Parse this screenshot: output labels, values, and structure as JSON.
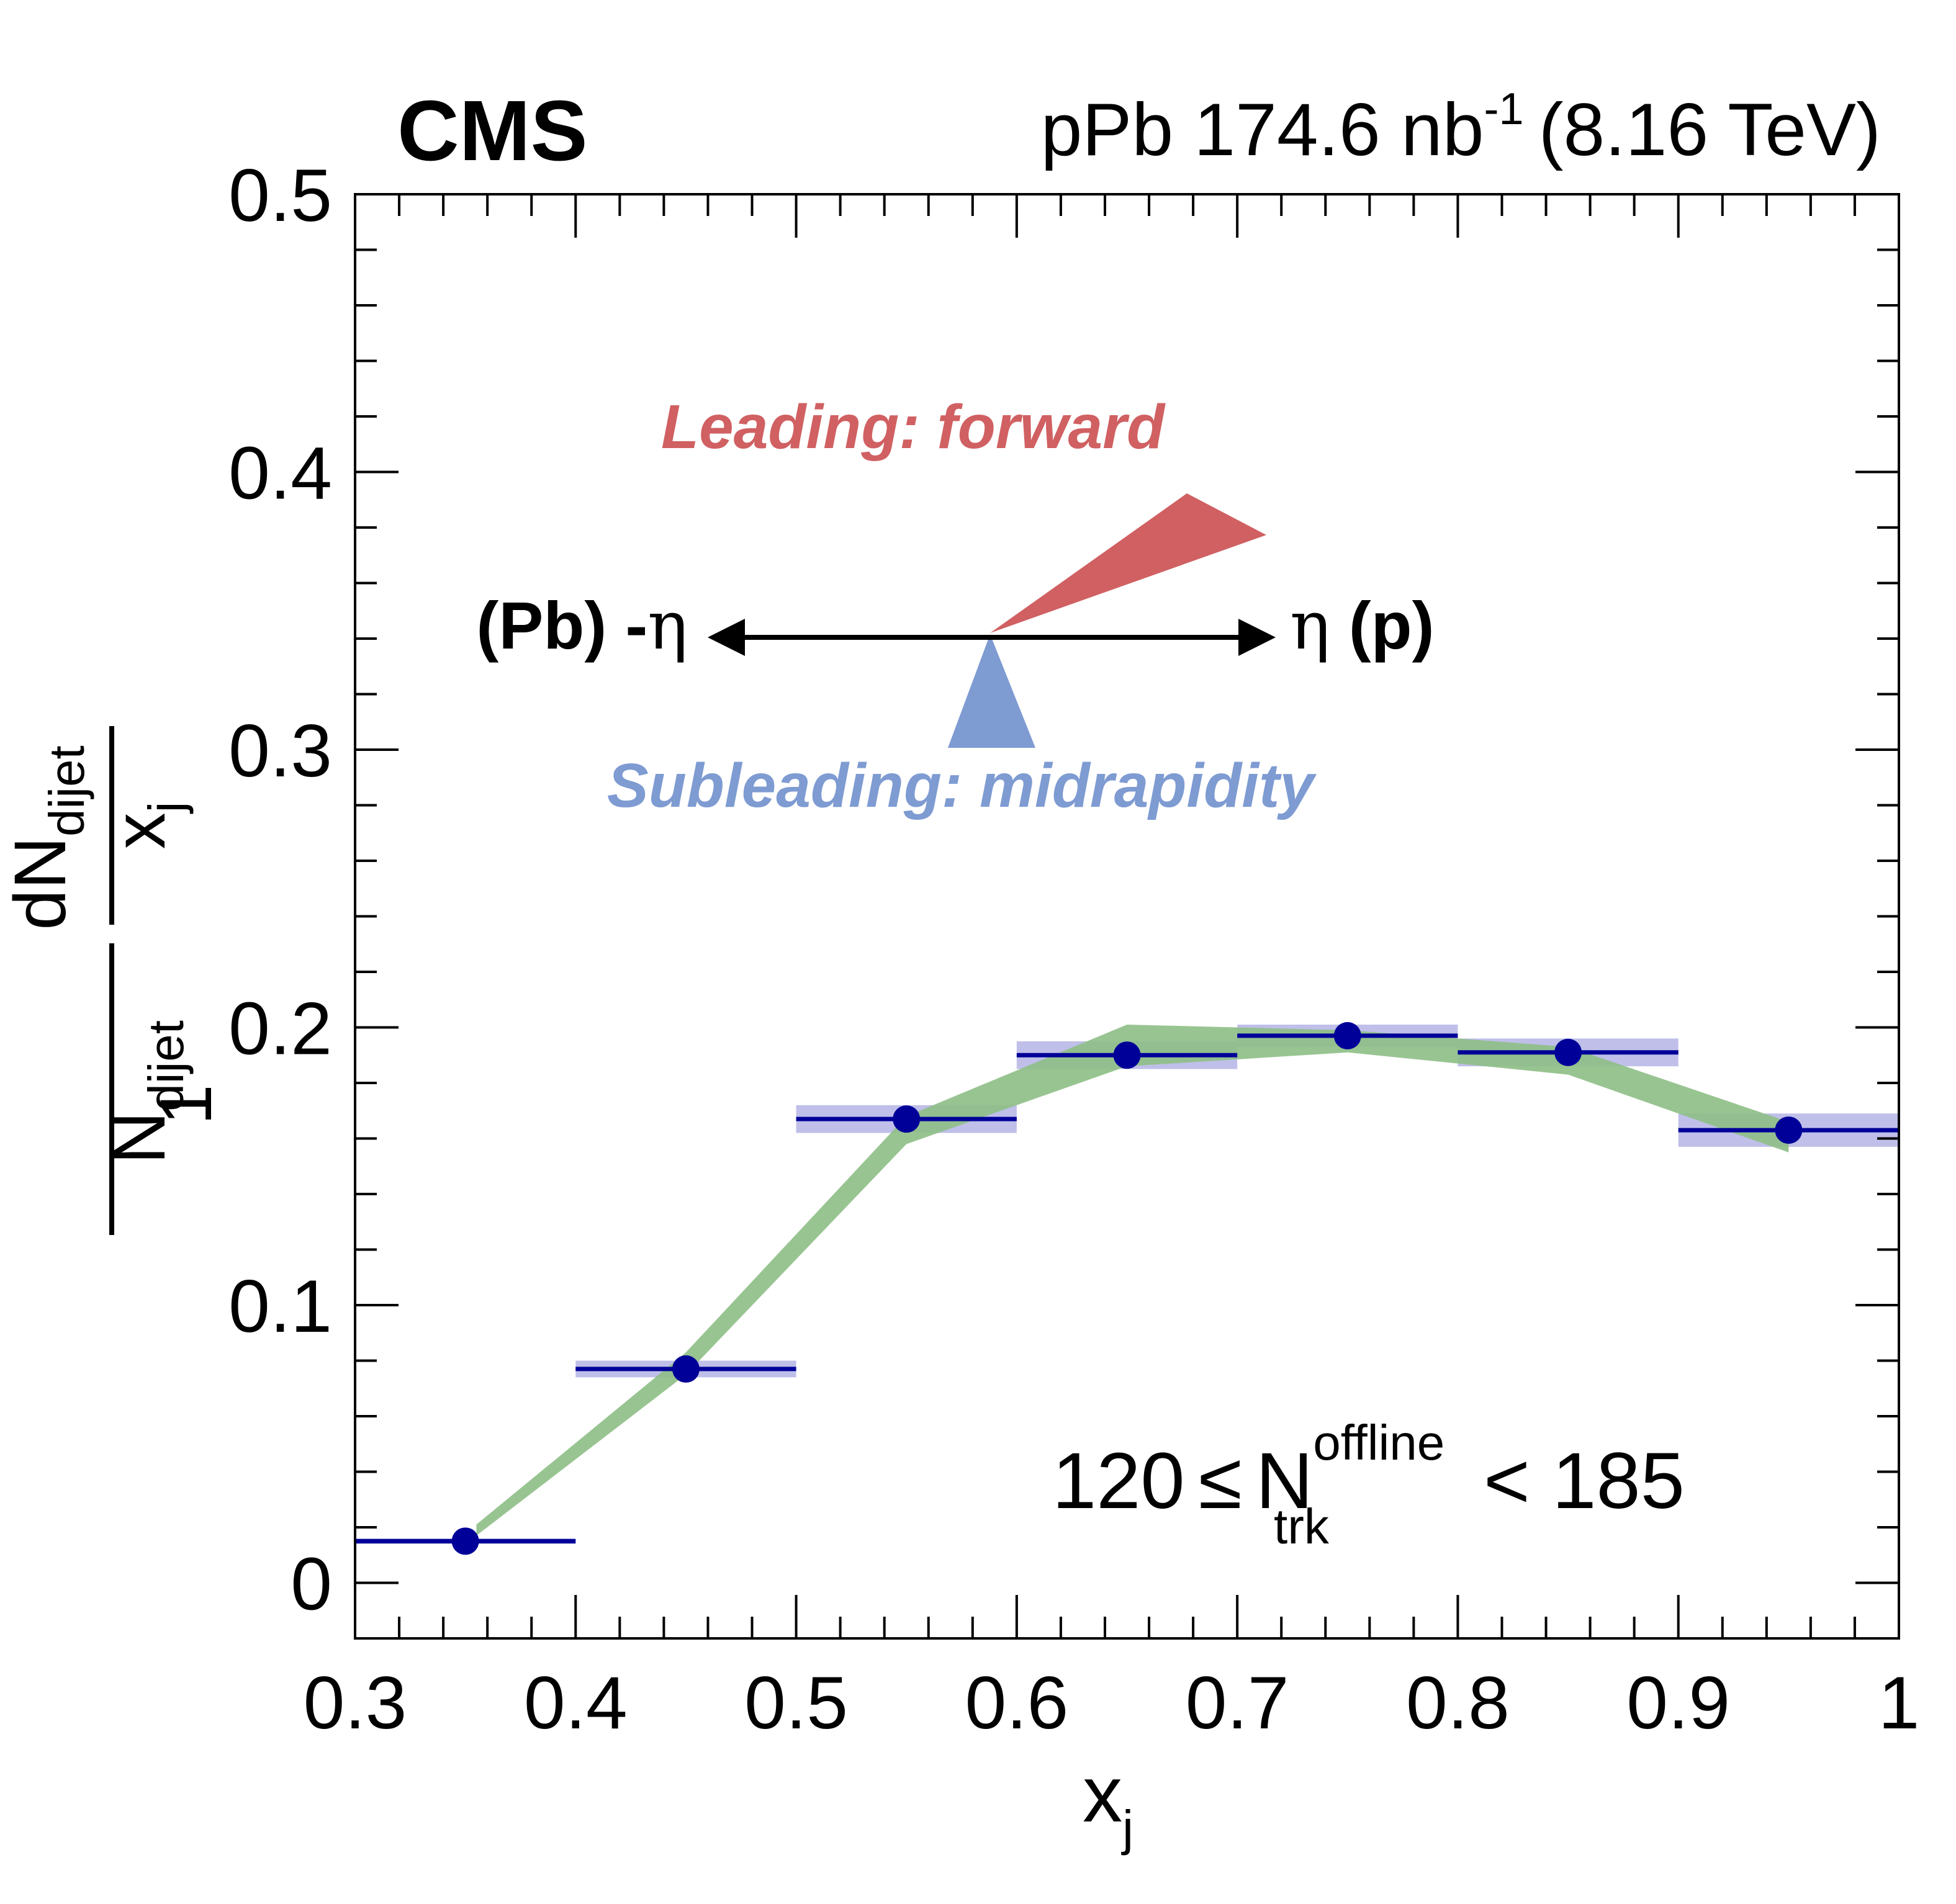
{
  "header": {
    "experiment": "CMS",
    "dataset_prefix": "pPb 174.6 nb",
    "dataset_exp": "-1",
    "energy": "(8.16 TeV)"
  },
  "annotations": {
    "leading": "Leading: forward",
    "subleading": "Subleading: midrapidity",
    "left_prefix": "(Pb) -",
    "right_suffix": "(p)",
    "eta": "η",
    "mult_low": "120",
    "mult_le": "≤",
    "mult_N": "N",
    "mult_sup": "offline",
    "mult_sub": "trk",
    "mult_high": "< 185",
    "colors": {
      "leading": "#d06062",
      "subleading": "#7e9bd2",
      "arrow": "#000000"
    }
  },
  "chart_data": {
    "type": "scatter",
    "xlabel": "x",
    "xlabel_sub": "j",
    "ylabel": {
      "num_pre": "1",
      "num_N": "N",
      "num_N_sub": "dijet",
      "frac_top_pre": "dN",
      "frac_top_sub": "dijet",
      "frac_bot": "x",
      "frac_bot_sub": "j"
    },
    "xlim": [
      0.3,
      1.0
    ],
    "ylim": [
      -0.02,
      0.5
    ],
    "x_ticks": [
      "0.3",
      "0.4",
      "0.5",
      "0.6",
      "0.7",
      "0.8",
      "0.9",
      "1"
    ],
    "y_ticks": [
      "0",
      "0.1",
      "0.2",
      "0.3",
      "0.4",
      "0.5"
    ],
    "series": [
      {
        "kind": "points",
        "color": "#000099",
        "syst_color": "#7f7fd3",
        "bins": [
          [
            0.3,
            0.4
          ],
          [
            0.4,
            0.5
          ],
          [
            0.5,
            0.6
          ],
          [
            0.6,
            0.7
          ],
          [
            0.7,
            0.8
          ],
          [
            0.8,
            0.9
          ],
          [
            0.9,
            1.0
          ]
        ],
        "x": [
          0.35,
          0.45,
          0.55,
          0.65,
          0.75,
          0.85,
          0.95
        ],
        "y": [
          0.015,
          0.077,
          0.167,
          0.19,
          0.197,
          0.191,
          0.163
        ],
        "syst": [
          0.001,
          0.003,
          0.005,
          0.005,
          0.004,
          0.005,
          0.006
        ]
      },
      {
        "kind": "band",
        "color": "#8fbf88",
        "x": [
          0.355,
          0.45,
          0.55,
          0.65,
          0.75,
          0.85,
          0.95
        ],
        "y_low": [
          0.017,
          0.075,
          0.158,
          0.186,
          0.191,
          0.183,
          0.155
        ],
        "y_high": [
          0.021,
          0.083,
          0.168,
          0.201,
          0.199,
          0.193,
          0.166
        ]
      }
    ],
    "grid": false,
    "legend": "none"
  }
}
